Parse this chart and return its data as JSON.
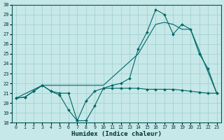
{
  "xlabel": "Humidex (Indice chaleur)",
  "xlim": [
    -0.5,
    23.5
  ],
  "ylim": [
    18,
    30
  ],
  "yticks": [
    18,
    19,
    20,
    21,
    22,
    23,
    24,
    25,
    26,
    27,
    28,
    29,
    30
  ],
  "xticks": [
    0,
    1,
    2,
    3,
    4,
    5,
    6,
    7,
    8,
    9,
    10,
    11,
    12,
    13,
    14,
    15,
    16,
    17,
    18,
    19,
    20,
    21,
    22,
    23
  ],
  "bg_color": "#c6e8e8",
  "line_color": "#006666",
  "grid_color": "#9ecece",
  "line1_x": [
    0,
    1,
    2,
    3,
    4,
    5,
    6,
    7,
    8,
    9,
    10,
    11,
    12,
    13,
    14,
    15,
    16,
    17,
    18,
    19,
    20,
    21,
    22,
    23
  ],
  "line1_y": [
    20.5,
    20.6,
    21.2,
    21.8,
    21.2,
    20.8,
    19.3,
    18.2,
    18.2,
    19.7,
    21.5,
    21.5,
    21.5,
    21.5,
    21.5,
    21.4,
    21.4,
    21.4,
    21.4,
    21.3,
    21.2,
    21.1,
    21.0,
    21.0
  ],
  "line2_x": [
    0,
    1,
    2,
    3,
    4,
    5,
    6,
    7,
    8,
    9,
    10,
    11,
    12,
    13,
    14,
    15,
    16,
    17,
    18,
    19,
    20,
    21,
    22,
    23
  ],
  "line2_y": [
    20.5,
    20.6,
    21.2,
    21.8,
    21.2,
    21.0,
    21.0,
    18.2,
    20.2,
    21.2,
    21.5,
    21.8,
    22.0,
    22.5,
    25.5,
    27.2,
    29.5,
    29.0,
    27.0,
    28.0,
    27.5,
    25.0,
    23.5,
    21.0
  ],
  "line3_x": [
    0,
    3,
    10,
    14,
    15,
    16,
    17,
    18,
    19,
    20,
    23
  ],
  "line3_y": [
    20.5,
    21.8,
    21.8,
    25.0,
    26.5,
    28.0,
    28.2,
    28.0,
    27.5,
    27.5,
    21.0
  ]
}
